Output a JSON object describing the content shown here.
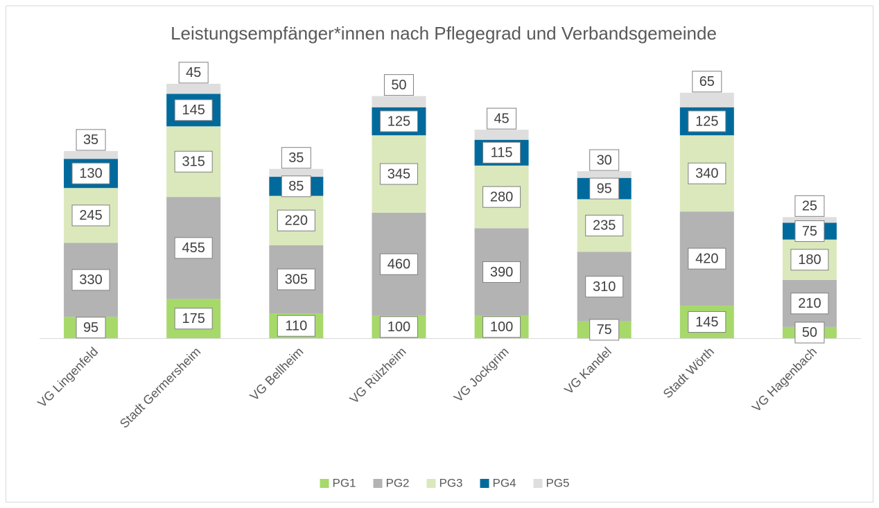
{
  "chart_data": {
    "type": "stacked_bar",
    "title": "Leistungsempfänger*innen nach Pflegegrad und Verbandsgemeinde",
    "categories": [
      "VG Lingenfeld",
      "Stadt Germersheim",
      "VG Bellheim",
      "VG Rülzheim",
      "VG Jockgrim",
      "VG Kandel",
      "Stadt Wörth",
      "VG Hagenbach"
    ],
    "series": [
      {
        "name": "PG1",
        "color": "#a6d96a",
        "values": [
          95,
          175,
          110,
          100,
          100,
          75,
          145,
          50
        ]
      },
      {
        "name": "PG2",
        "color": "#b3b3b3",
        "values": [
          330,
          455,
          305,
          460,
          390,
          310,
          420,
          210
        ]
      },
      {
        "name": "PG3",
        "color": "#dae8bc",
        "values": [
          245,
          315,
          220,
          345,
          280,
          235,
          340,
          180
        ]
      },
      {
        "name": "PG4",
        "color": "#006a9c",
        "values": [
          130,
          145,
          85,
          125,
          115,
          95,
          125,
          75
        ]
      },
      {
        "name": "PG5",
        "color": "#dedede",
        "values": [
          35,
          45,
          35,
          50,
          45,
          30,
          65,
          25
        ]
      }
    ],
    "legend": "bottom"
  }
}
